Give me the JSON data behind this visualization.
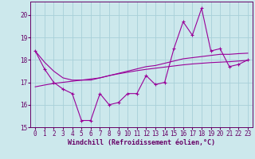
{
  "xlabel": "Windchill (Refroidissement éolien,°C)",
  "background_color": "#cce8ec",
  "grid_color": "#a8d0d8",
  "line_color": "#990099",
  "x_data": [
    0,
    1,
    2,
    3,
    4,
    5,
    6,
    7,
    8,
    9,
    10,
    11,
    12,
    13,
    14,
    15,
    16,
    17,
    18,
    19,
    20,
    21,
    22,
    23
  ],
  "y_windchill": [
    18.4,
    17.6,
    17.0,
    16.7,
    16.5,
    15.3,
    15.3,
    16.5,
    16.0,
    16.1,
    16.5,
    16.5,
    17.3,
    16.9,
    17.0,
    18.5,
    19.7,
    19.1,
    20.3,
    18.4,
    18.5,
    17.7,
    17.8,
    18.0
  ],
  "y_trend1": [
    18.4,
    17.9,
    17.5,
    17.2,
    17.1,
    17.1,
    17.1,
    17.2,
    17.3,
    17.4,
    17.5,
    17.6,
    17.7,
    17.75,
    17.85,
    17.95,
    18.05,
    18.1,
    18.15,
    18.2,
    18.25,
    18.25,
    18.28,
    18.3
  ],
  "y_trend2": [
    16.8,
    16.88,
    16.95,
    17.0,
    17.05,
    17.1,
    17.15,
    17.2,
    17.3,
    17.38,
    17.45,
    17.52,
    17.58,
    17.63,
    17.68,
    17.73,
    17.78,
    17.82,
    17.85,
    17.88,
    17.9,
    17.92,
    17.95,
    17.98
  ],
  "ylim": [
    15.0,
    20.6
  ],
  "xlim": [
    -0.5,
    23.5
  ],
  "yticks": [
    15,
    16,
    17,
    18,
    19,
    20
  ],
  "xticks": [
    0,
    1,
    2,
    3,
    4,
    5,
    6,
    7,
    8,
    9,
    10,
    11,
    12,
    13,
    14,
    15,
    16,
    17,
    18,
    19,
    20,
    21,
    22,
    23
  ],
  "font_color": "#660066",
  "tick_fontsize": 5.5,
  "xlabel_fontsize": 6.0
}
